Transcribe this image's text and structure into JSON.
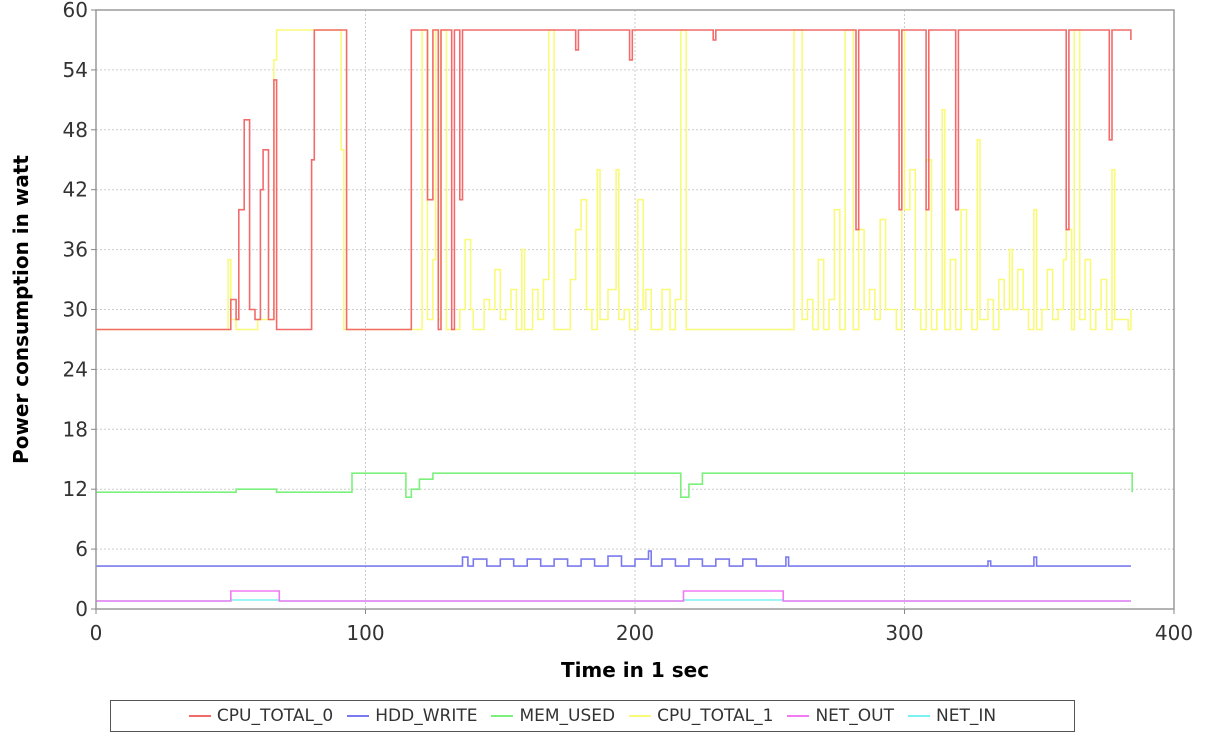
{
  "chart_data": {
    "type": "line",
    "title": "",
    "xlabel": "Time in 1 sec",
    "ylabel": "Power consumption in watt",
    "xlim": [
      0,
      400
    ],
    "ylim": [
      0,
      60
    ],
    "x_ticks": [
      "0",
      "100",
      "200",
      "300",
      "400"
    ],
    "y_ticks": [
      "0",
      "6",
      "12",
      "18",
      "24",
      "30",
      "36",
      "42",
      "48",
      "54",
      "60"
    ],
    "grid": true,
    "legend_position": "bottom",
    "series": [
      {
        "name": "CPU_TOTAL_0",
        "color": "#f26b6b",
        "points": [
          [
            0,
            28
          ],
          [
            48,
            28
          ],
          [
            50,
            31
          ],
          [
            52,
            29
          ],
          [
            53,
            40
          ],
          [
            55,
            49
          ],
          [
            57,
            30
          ],
          [
            59,
            29
          ],
          [
            61,
            42
          ],
          [
            62,
            46
          ],
          [
            64,
            29
          ],
          [
            66,
            53
          ],
          [
            67,
            28
          ],
          [
            76,
            28
          ],
          [
            80,
            45
          ],
          [
            81,
            58
          ],
          [
            92,
            58
          ],
          [
            93,
            28
          ],
          [
            116,
            28
          ],
          [
            117,
            58
          ],
          [
            122,
            58
          ],
          [
            123,
            41
          ],
          [
            125,
            58
          ],
          [
            126,
            58
          ],
          [
            127,
            28
          ],
          [
            128,
            58
          ],
          [
            131,
            58
          ],
          [
            132,
            28
          ],
          [
            133,
            58
          ],
          [
            134,
            58
          ],
          [
            135,
            41
          ],
          [
            136,
            58
          ],
          [
            177,
            58
          ],
          [
            178,
            56
          ],
          [
            179,
            58
          ],
          [
            197,
            58
          ],
          [
            198,
            55
          ],
          [
            199,
            58
          ],
          [
            228,
            58
          ],
          [
            229,
            57
          ],
          [
            230,
            58
          ],
          [
            280,
            58
          ],
          [
            282,
            38
          ],
          [
            283,
            58
          ],
          [
            297,
            58
          ],
          [
            298,
            40
          ],
          [
            299,
            58
          ],
          [
            307,
            58
          ],
          [
            308,
            40
          ],
          [
            309,
            58
          ],
          [
            317,
            58
          ],
          [
            319,
            40
          ],
          [
            320,
            58
          ],
          [
            358,
            58
          ],
          [
            360,
            38
          ],
          [
            361,
            58
          ],
          [
            375,
            58
          ],
          [
            376,
            47
          ],
          [
            377,
            58
          ],
          [
            383,
            58
          ],
          [
            384,
            57
          ]
        ]
      },
      {
        "name": "HDD_WRITE",
        "color": "#7a7aee",
        "points": [
          [
            0,
            4.3
          ],
          [
            135,
            4.3
          ],
          [
            136,
            5.2
          ],
          [
            138,
            4.3
          ],
          [
            140,
            5.0
          ],
          [
            145,
            4.3
          ],
          [
            150,
            5.0
          ],
          [
            155,
            4.3
          ],
          [
            160,
            5.0
          ],
          [
            165,
            4.3
          ],
          [
            170,
            5.0
          ],
          [
            175,
            4.3
          ],
          [
            180,
            5.0
          ],
          [
            185,
            4.3
          ],
          [
            190,
            5.3
          ],
          [
            195,
            4.3
          ],
          [
            200,
            5.0
          ],
          [
            205,
            5.8
          ],
          [
            206,
            4.3
          ],
          [
            210,
            5.0
          ],
          [
            215,
            4.3
          ],
          [
            220,
            5.0
          ],
          [
            225,
            4.3
          ],
          [
            230,
            5.0
          ],
          [
            235,
            4.3
          ],
          [
            240,
            5.0
          ],
          [
            245,
            4.3
          ],
          [
            256,
            5.2
          ],
          [
            257,
            4.3
          ],
          [
            330,
            4.3
          ],
          [
            331,
            4.8
          ],
          [
            332,
            4.3
          ],
          [
            347,
            4.3
          ],
          [
            348,
            5.2
          ],
          [
            349,
            4.3
          ],
          [
            384,
            4.3
          ]
        ]
      },
      {
        "name": "MEM_USED",
        "color": "#7cf07c",
        "points": [
          [
            0,
            11.7
          ],
          [
            50,
            11.7
          ],
          [
            52,
            12.0
          ],
          [
            57,
            12.0
          ],
          [
            67,
            11.7
          ],
          [
            90,
            11.7
          ],
          [
            95,
            13.6
          ],
          [
            114,
            13.6
          ],
          [
            115,
            11.2
          ],
          [
            117,
            12.0
          ],
          [
            120,
            13.0
          ],
          [
            125,
            13.6
          ],
          [
            216,
            13.6
          ],
          [
            217,
            11.2
          ],
          [
            220,
            12.5
          ],
          [
            225,
            13.6
          ],
          [
            384,
            13.6
          ],
          [
            384.5,
            11.7
          ]
        ]
      },
      {
        "name": "CPU_TOTAL_1",
        "color": "#fafa7a",
        "points": [
          [
            0,
            28
          ],
          [
            48,
            28
          ],
          [
            49,
            35
          ],
          [
            50,
            29
          ],
          [
            52,
            28
          ],
          [
            60,
            29
          ],
          [
            65,
            29
          ],
          [
            66,
            55
          ],
          [
            67,
            58
          ],
          [
            80,
            58
          ],
          [
            90,
            58
          ],
          [
            91,
            46
          ],
          [
            92,
            28
          ],
          [
            115,
            28
          ],
          [
            116,
            28
          ],
          [
            117,
            28
          ],
          [
            120,
            28
          ],
          [
            121,
            58
          ],
          [
            122,
            58
          ],
          [
            123,
            29
          ],
          [
            125,
            35
          ],
          [
            126,
            58
          ],
          [
            127,
            29
          ],
          [
            128,
            58
          ],
          [
            130,
            28
          ],
          [
            135,
            30
          ],
          [
            137,
            37
          ],
          [
            139,
            30
          ],
          [
            140,
            28
          ],
          [
            144,
            31
          ],
          [
            146,
            30
          ],
          [
            148,
            34
          ],
          [
            150,
            29
          ],
          [
            152,
            30
          ],
          [
            154,
            32
          ],
          [
            156,
            28
          ],
          [
            158,
            36
          ],
          [
            159,
            28
          ],
          [
            162,
            32
          ],
          [
            164,
            29
          ],
          [
            166,
            33
          ],
          [
            168,
            58
          ],
          [
            169,
            58
          ],
          [
            170,
            28
          ],
          [
            176,
            33
          ],
          [
            178,
            38
          ],
          [
            180,
            41
          ],
          [
            182,
            30
          ],
          [
            184,
            28
          ],
          [
            186,
            44
          ],
          [
            187,
            29
          ],
          [
            190,
            32
          ],
          [
            193,
            44
          ],
          [
            194,
            29
          ],
          [
            196,
            30
          ],
          [
            198,
            28
          ],
          [
            201,
            41
          ],
          [
            203,
            30
          ],
          [
            204,
            32
          ],
          [
            206,
            28
          ],
          [
            210,
            32
          ],
          [
            213,
            28
          ],
          [
            215,
            31
          ],
          [
            217,
            58
          ],
          [
            218,
            58
          ],
          [
            219,
            28
          ],
          [
            258,
            28
          ],
          [
            259,
            58
          ],
          [
            260,
            58
          ],
          [
            262,
            29
          ],
          [
            264,
            31
          ],
          [
            266,
            28
          ],
          [
            268,
            35
          ],
          [
            270,
            28
          ],
          [
            272,
            31
          ],
          [
            274,
            40
          ],
          [
            276,
            28
          ],
          [
            278,
            58
          ],
          [
            281,
            28
          ],
          [
            283,
            38
          ],
          [
            285,
            30
          ],
          [
            287,
            32
          ],
          [
            289,
            29
          ],
          [
            291,
            39
          ],
          [
            293,
            30
          ],
          [
            295,
            30
          ],
          [
            297,
            28
          ],
          [
            299,
            58
          ],
          [
            300,
            40
          ],
          [
            302,
            44
          ],
          [
            304,
            30
          ],
          [
            306,
            28
          ],
          [
            308,
            45
          ],
          [
            310,
            28
          ],
          [
            312,
            30
          ],
          [
            314,
            50
          ],
          [
            315,
            28
          ],
          [
            317,
            35
          ],
          [
            319,
            28
          ],
          [
            321,
            40
          ],
          [
            323,
            30
          ],
          [
            325,
            28
          ],
          [
            327,
            47
          ],
          [
            328,
            29
          ],
          [
            331,
            31
          ],
          [
            333,
            28
          ],
          [
            335,
            33
          ],
          [
            337,
            30
          ],
          [
            339,
            36
          ],
          [
            340,
            30
          ],
          [
            342,
            34
          ],
          [
            344,
            30
          ],
          [
            346,
            28
          ],
          [
            348,
            40
          ],
          [
            349,
            28
          ],
          [
            351,
            30
          ],
          [
            353,
            34
          ],
          [
            355,
            29
          ],
          [
            357,
            30
          ],
          [
            359,
            35
          ],
          [
            360,
            38
          ],
          [
            362,
            28
          ],
          [
            363,
            58
          ],
          [
            365,
            29
          ],
          [
            367,
            35
          ],
          [
            369,
            28
          ],
          [
            371,
            30
          ],
          [
            373,
            33
          ],
          [
            375,
            28
          ],
          [
            377,
            44
          ],
          [
            378,
            29
          ],
          [
            381,
            29
          ],
          [
            383,
            28
          ],
          [
            384,
            30
          ]
        ]
      },
      {
        "name": "NET_OUT",
        "color": "#f27af2",
        "points": [
          [
            0,
            0.8
          ],
          [
            49,
            0.8
          ],
          [
            50,
            1.8
          ],
          [
            67,
            1.8
          ],
          [
            68,
            0.8
          ],
          [
            217,
            0.8
          ],
          [
            218,
            1.8
          ],
          [
            254,
            1.8
          ],
          [
            255,
            0.8
          ],
          [
            384,
            0.8
          ]
        ]
      },
      {
        "name": "NET_IN",
        "color": "#7af2f2",
        "points": [
          [
            0,
            0.8
          ],
          [
            49,
            0.8
          ],
          [
            50,
            0.9
          ],
          [
            67,
            0.9
          ],
          [
            68,
            0.8
          ],
          [
            217,
            0.8
          ],
          [
            218,
            0.9
          ],
          [
            254,
            0.9
          ],
          [
            255,
            0.8
          ],
          [
            384,
            0.8
          ]
        ]
      }
    ]
  }
}
